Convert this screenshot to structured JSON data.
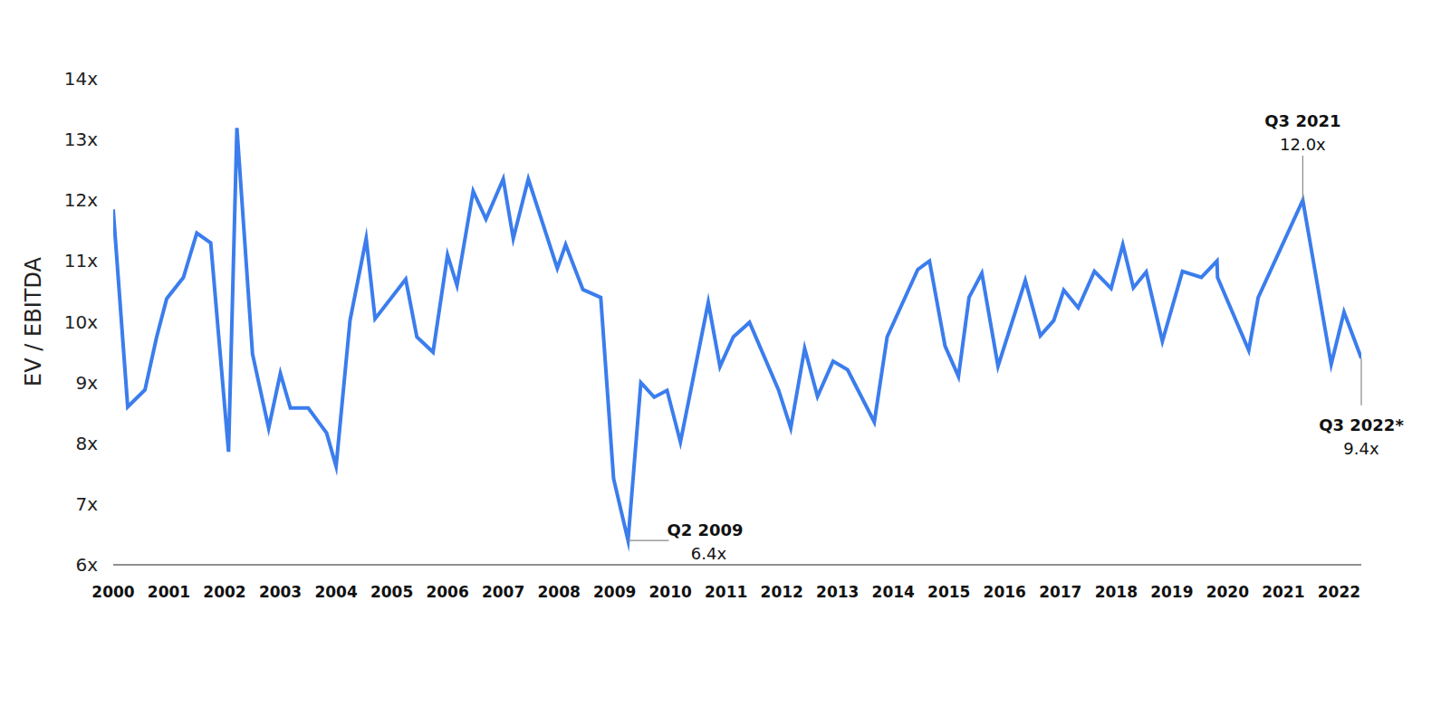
{
  "chart_data": {
    "type": "line",
    "y_label": "EV / EBITDA",
    "color": "#3b7ded",
    "xlim": [
      2000,
      2022.4
    ],
    "xticks": [
      2000,
      2001,
      2002,
      2003,
      2004,
      2005,
      2006,
      2007,
      2008,
      2009,
      2010,
      2011,
      2012,
      2013,
      2014,
      2015,
      2016,
      2017,
      2018,
      2019,
      2020,
      2021,
      2022
    ],
    "ylim": [
      6,
      14
    ],
    "yticks": [
      {
        "value": 6,
        "label": "6x"
      },
      {
        "value": 7,
        "label": "7x"
      },
      {
        "value": 8,
        "label": "8x"
      },
      {
        "value": 9,
        "label": "9x"
      },
      {
        "value": 10,
        "label": "10x"
      },
      {
        "value": 11,
        "label": "11x"
      },
      {
        "value": 12,
        "label": "12x"
      },
      {
        "value": 13,
        "label": "13x"
      },
      {
        "value": 14,
        "label": "14x"
      }
    ],
    "grid": false,
    "x": [
      2000.0,
      2000.26,
      2000.57,
      2000.78,
      2000.96,
      2001.26,
      2001.5,
      2001.75,
      2002.07,
      2002.22,
      2002.5,
      2002.79,
      2003.0,
      2003.18,
      2003.5,
      2003.83,
      2004.0,
      2004.25,
      2004.54,
      2004.7,
      2005.25,
      2005.45,
      2005.74,
      2006.0,
      2006.17,
      2006.46,
      2006.69,
      2007.0,
      2007.18,
      2007.45,
      2007.97,
      2008.12,
      2008.43,
      2008.75,
      2008.98,
      2009.24,
      2009.47,
      2009.71,
      2009.94,
      2010.18,
      2010.68,
      2010.89,
      2011.13,
      2011.42,
      2011.94,
      2012.16,
      2012.41,
      2012.64,
      2012.92,
      2013.18,
      2013.66,
      2013.89,
      2014.44,
      2014.65,
      2014.93,
      2015.17,
      2015.36,
      2015.59,
      2015.88,
      2016.37,
      2016.64,
      2016.88,
      2017.06,
      2017.32,
      2017.61,
      2017.91,
      2018.12,
      2018.31,
      2018.54,
      2018.83,
      2019.19,
      2019.53,
      2019.81,
      2019.82,
      2020.38,
      2020.55,
      2021.35,
      2021.86,
      2022.09,
      2022.4
    ],
    "values": [
      11.85,
      8.6,
      8.88,
      9.75,
      10.38,
      10.73,
      11.46,
      11.3,
      7.86,
      13.19,
      9.47,
      8.25,
      9.15,
      8.58,
      8.58,
      8.17,
      7.62,
      10.02,
      11.37,
      10.05,
      10.7,
      9.75,
      9.5,
      11.1,
      10.6,
      12.15,
      11.69,
      12.35,
      11.37,
      12.35,
      10.88,
      11.27,
      10.53,
      10.4,
      7.42,
      6.4,
      9.0,
      8.76,
      8.87,
      8.02,
      10.32,
      9.26,
      9.75,
      9.99,
      8.88,
      8.25,
      9.56,
      8.77,
      9.35,
      9.21,
      8.35,
      9.75,
      10.86,
      11.0,
      9.6,
      9.1,
      10.4,
      10.8,
      9.27,
      10.68,
      9.77,
      10.02,
      10.52,
      10.23,
      10.83,
      10.55,
      11.27,
      10.56,
      10.82,
      9.68,
      10.83,
      10.73,
      11.0,
      10.73,
      9.53,
      10.4,
      12.0,
      9.3,
      10.16,
      9.4
    ],
    "annotations": [
      {
        "label": "Q2 2009",
        "text": "6.4x",
        "x": 2009.24,
        "y": 6.4
      },
      {
        "label": "Q3 2021",
        "text": "12.0x",
        "x": 2021.35,
        "y": 12.0
      },
      {
        "label": "Q3 2022*",
        "text": "9.4x",
        "x": 2022.4,
        "y": 9.4
      }
    ]
  }
}
